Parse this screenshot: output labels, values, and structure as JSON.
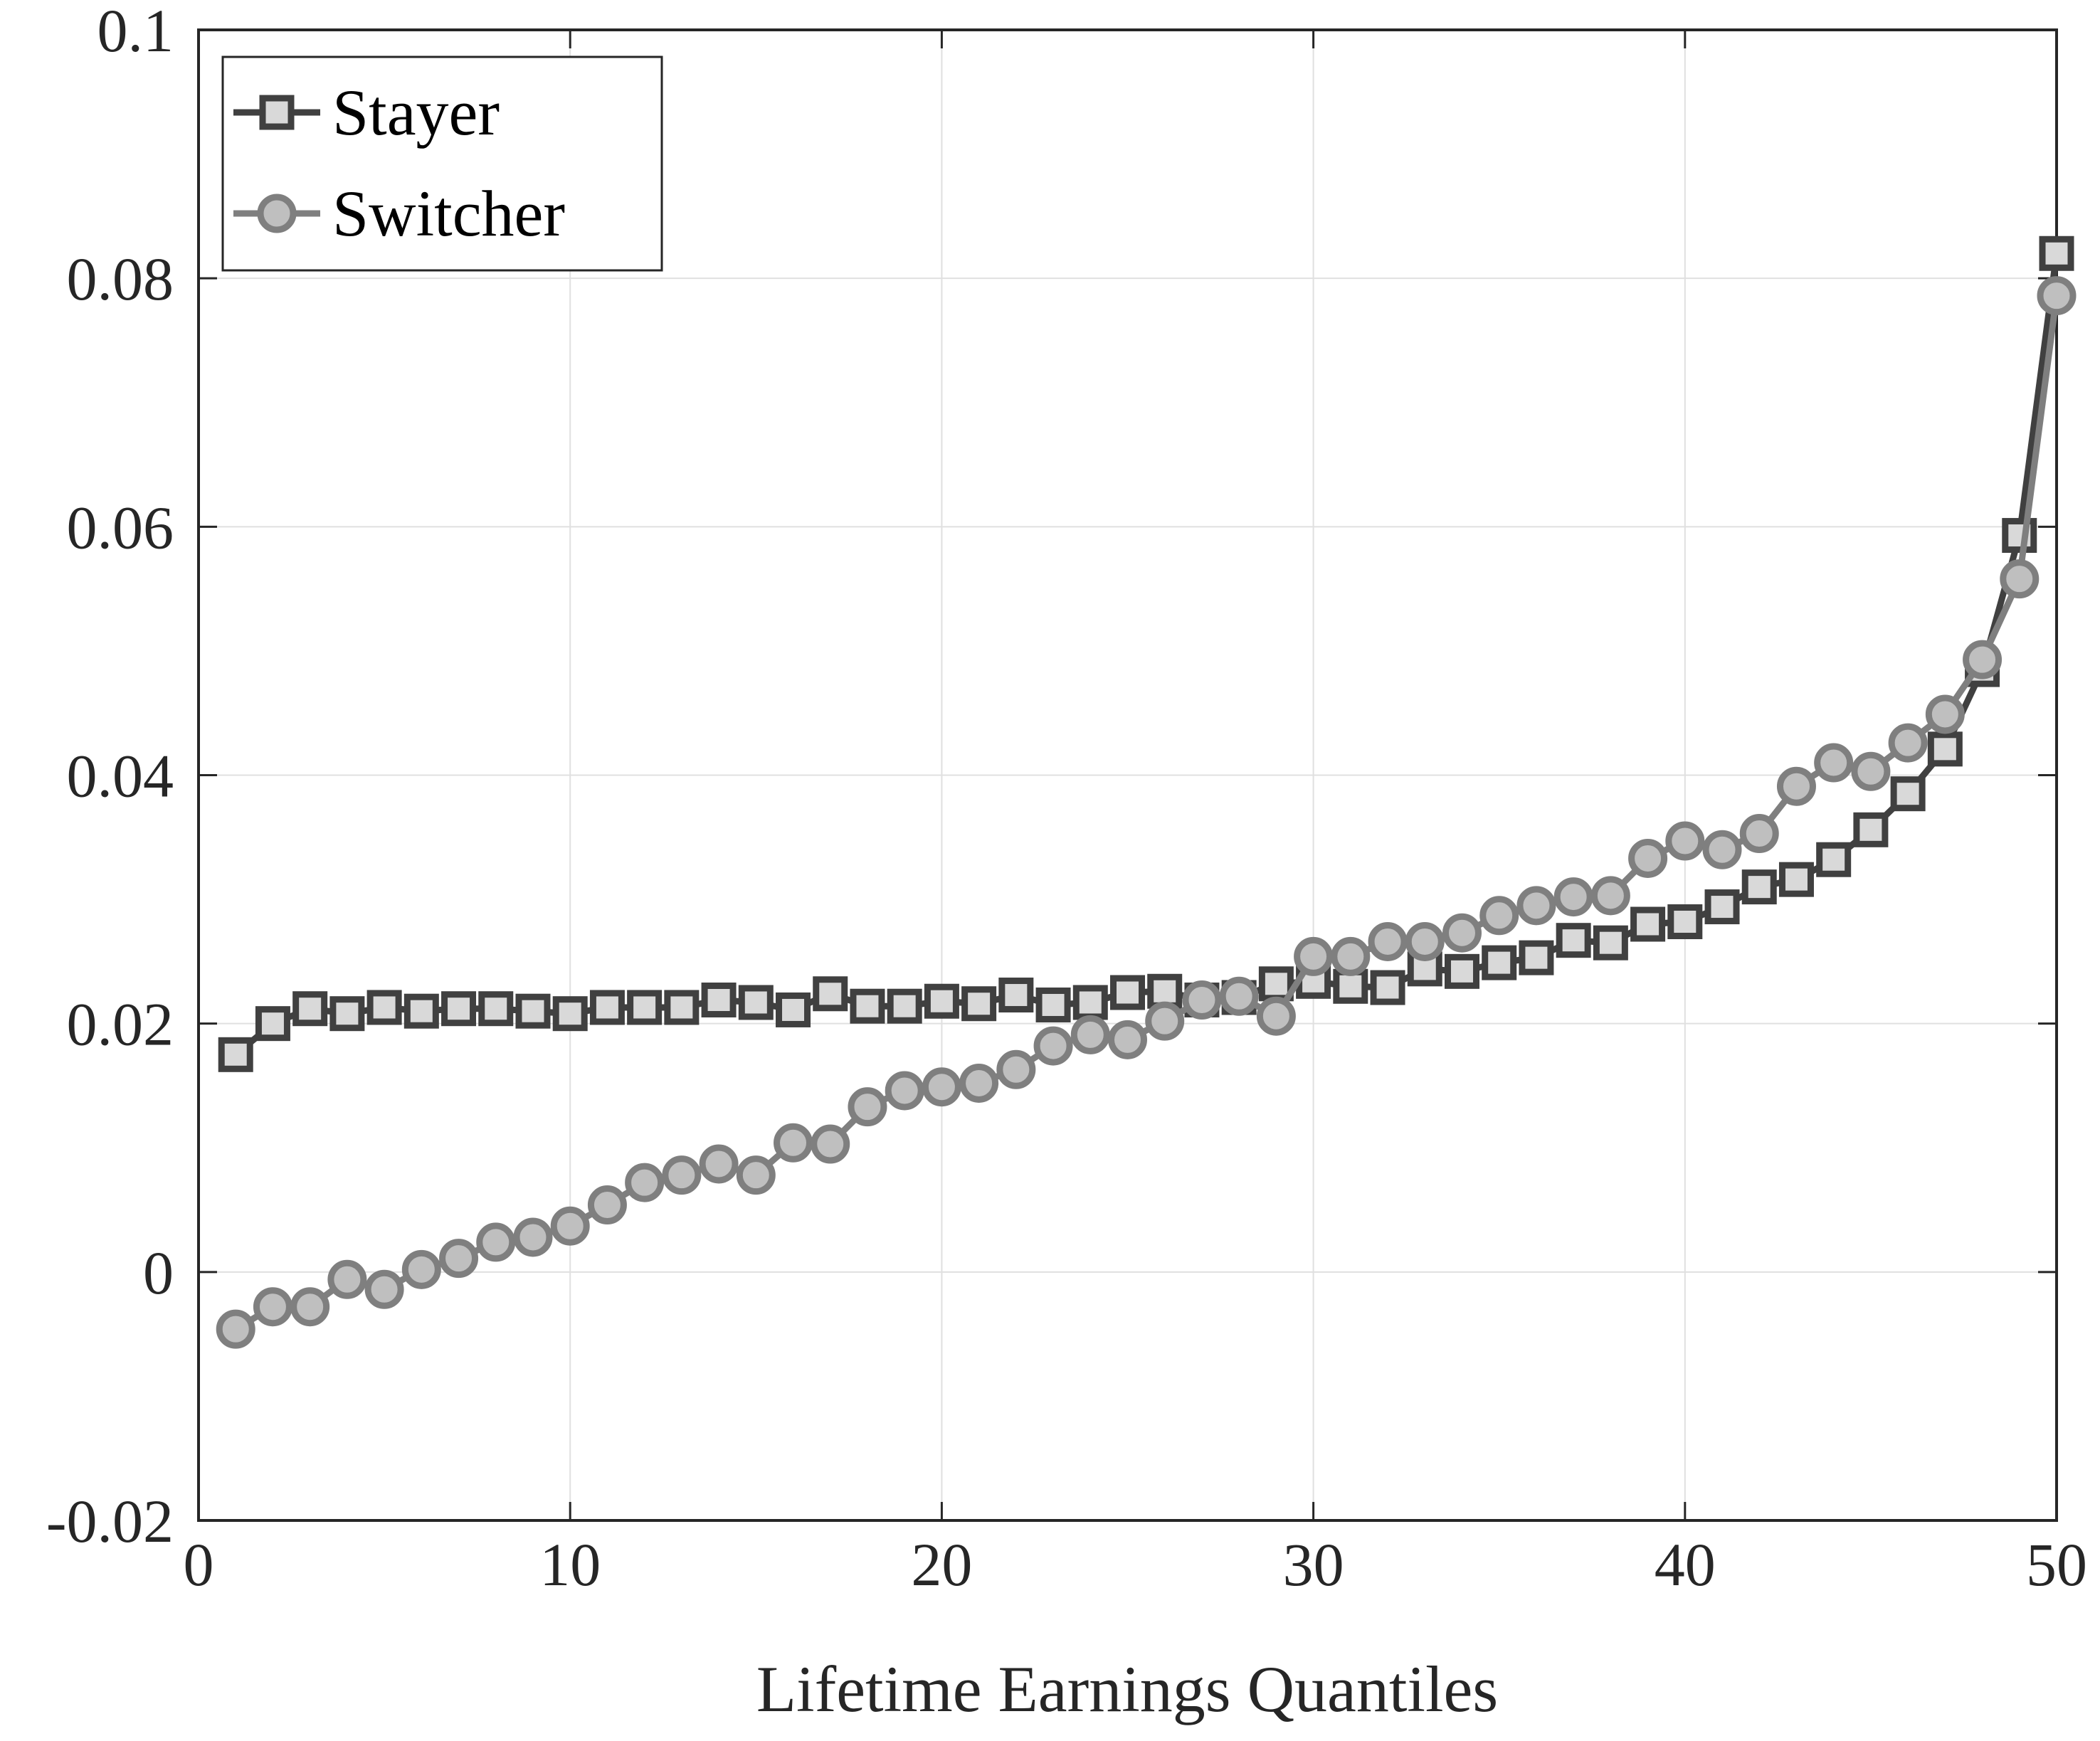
{
  "chart_data": {
    "type": "line",
    "title": "",
    "xlabel": "Lifetime Earnings Quantiles",
    "ylabel": "",
    "xlim": [
      0,
      50
    ],
    "ylim": [
      -0.02,
      0.1
    ],
    "xticks": [
      0,
      10,
      20,
      30,
      40,
      50
    ],
    "xtick_labels": [
      "0",
      "10",
      "20",
      "30",
      "40",
      "50"
    ],
    "yticks": [
      -0.02,
      0,
      0.02,
      0.04,
      0.06,
      0.08,
      0.1
    ],
    "ytick_labels": [
      "-0.02",
      "0",
      "0.02",
      "0.04",
      "0.06",
      "0.08",
      "0.1"
    ],
    "grid": true,
    "legend_position": "top-left",
    "x": [
      1,
      2,
      3,
      4,
      5,
      6,
      7,
      8,
      9,
      10,
      11,
      12,
      13,
      14,
      15,
      16,
      17,
      18,
      19,
      20,
      21,
      22,
      23,
      24,
      25,
      26,
      27,
      28,
      29,
      30,
      31,
      32,
      33,
      34,
      35,
      36,
      37,
      38,
      39,
      40,
      41,
      42,
      43,
      44,
      45,
      46,
      47,
      48,
      49,
      50
    ],
    "series": [
      {
        "name": "Stayer",
        "marker": "square",
        "line_color": "#404040",
        "marker_fill": "#d9d9d9",
        "values": [
          0.0175,
          0.02,
          0.0212,
          0.0208,
          0.0213,
          0.021,
          0.0212,
          0.0212,
          0.021,
          0.0208,
          0.0213,
          0.0213,
          0.0213,
          0.0219,
          0.0217,
          0.0211,
          0.0224,
          0.0214,
          0.0214,
          0.0218,
          0.0216,
          0.0223,
          0.0215,
          0.0217,
          0.0225,
          0.0226,
          0.0219,
          0.0221,
          0.0232,
          0.0234,
          0.023,
          0.0229,
          0.0244,
          0.0242,
          0.0249,
          0.0253,
          0.0267,
          0.0265,
          0.028,
          0.0282,
          0.0294,
          0.031,
          0.0316,
          0.0332,
          0.0356,
          0.0385,
          0.0421,
          0.0485,
          0.0593,
          0.082
        ]
      },
      {
        "name": "Switcher",
        "marker": "circle",
        "line_color": "#7f7f7f",
        "marker_fill": "#bfbfbf",
        "values": [
          -0.0046,
          -0.0028,
          -0.0028,
          -0.0006,
          -0.0014,
          0.0002,
          0.0011,
          0.0024,
          0.0028,
          0.0037,
          0.0054,
          0.0072,
          0.0078,
          0.0087,
          0.0078,
          0.0104,
          0.0103,
          0.0133,
          0.0146,
          0.0149,
          0.0152,
          0.0163,
          0.0182,
          0.0191,
          0.0187,
          0.0202,
          0.0219,
          0.0222,
          0.0206,
          0.0254,
          0.0254,
          0.0266,
          0.0266,
          0.0273,
          0.0287,
          0.0295,
          0.0302,
          0.0303,
          0.0333,
          0.0347,
          0.034,
          0.0353,
          0.0391,
          0.041,
          0.0403,
          0.0426,
          0.0449,
          0.0493,
          0.0558,
          0.0786
        ]
      }
    ]
  }
}
